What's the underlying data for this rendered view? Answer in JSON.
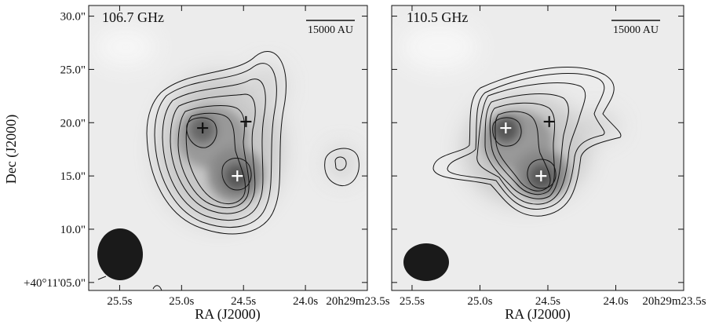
{
  "chart_data": [
    {
      "type": "image",
      "title": "106.7 GHz",
      "scale_label": "15000 AU",
      "xlabel": "RA (J2000)",
      "ylabel": "Dec (J2000)",
      "xlim": [
        25.75,
        23.5
      ],
      "ylim": [
        4.25,
        31.0
      ],
      "xticks": [
        {
          "value": 25.5,
          "label": "25.5s"
        },
        {
          "value": 25.0,
          "label": "25.0s"
        },
        {
          "value": 24.5,
          "label": "24.5s"
        },
        {
          "value": 24.0,
          "label": "24.0s"
        },
        {
          "value": 23.5,
          "label": "20h29m23.5s"
        }
      ],
      "yticks": [
        {
          "value": 5,
          "label": "+40°11'05.0\""
        },
        {
          "value": 10,
          "label": "10.0\""
        },
        {
          "value": 15,
          "label": "15.0\""
        },
        {
          "value": 20,
          "label": "20.0\""
        },
        {
          "value": 25,
          "label": "25.0\""
        },
        {
          "value": 30,
          "label": "30.0\""
        }
      ],
      "sources": [
        {
          "ra": 24.83,
          "dec": 19.5,
          "color": "#111111"
        },
        {
          "ra": 24.55,
          "dec": 15.0,
          "color": "#ffffff"
        },
        {
          "ra": 24.48,
          "dec": 20.1,
          "color": "#111111"
        }
      ]
    },
    {
      "type": "image",
      "title": "110.5 GHz",
      "scale_label": "15000 AU",
      "xlabel": "RA (J2000)",
      "xlim": [
        25.65,
        23.5
      ],
      "ylim": [
        4.25,
        31.0
      ],
      "xticks": [
        {
          "value": 25.5,
          "label": "25.5s"
        },
        {
          "value": 25.0,
          "label": "25.0s"
        },
        {
          "value": 24.5,
          "label": "24.5s"
        },
        {
          "value": 24.0,
          "label": "24.0s"
        },
        {
          "value": 23.5,
          "label": "20h29m23.5s"
        }
      ],
      "yticks": [
        5,
        10,
        15,
        20,
        25,
        30
      ],
      "sources": [
        {
          "ra": 24.81,
          "dec": 19.5,
          "color": "#ffffff"
        },
        {
          "ra": 24.55,
          "dec": 15.0,
          "color": "#ffffff"
        },
        {
          "ra": 24.49,
          "dec": 20.1,
          "color": "#111111"
        }
      ]
    }
  ]
}
